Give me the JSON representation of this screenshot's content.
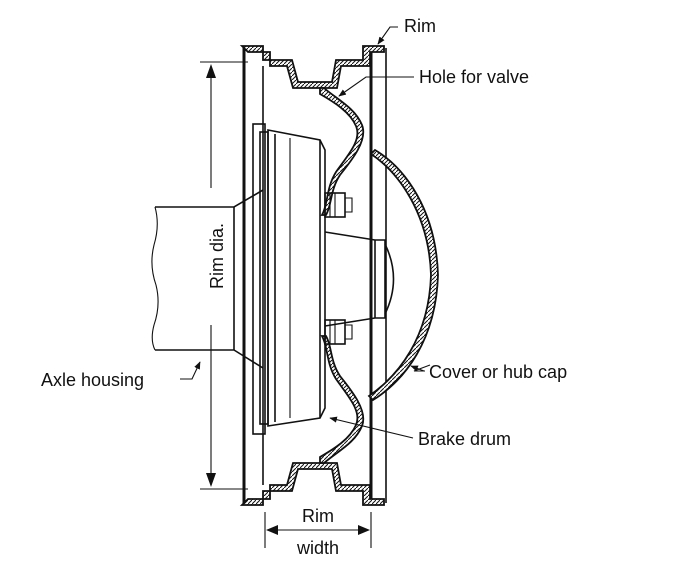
{
  "labels": {
    "rim": "Rim",
    "hole_for_valve": "Hole for valve",
    "rim_dia": "Rim dia.",
    "cover_or_hub_cap": "Cover or hub cap",
    "axle_housing": "Axle housing",
    "brake_drum": "Brake drum",
    "rim_width_line1": "Rim",
    "rim_width_line2": "width"
  }
}
